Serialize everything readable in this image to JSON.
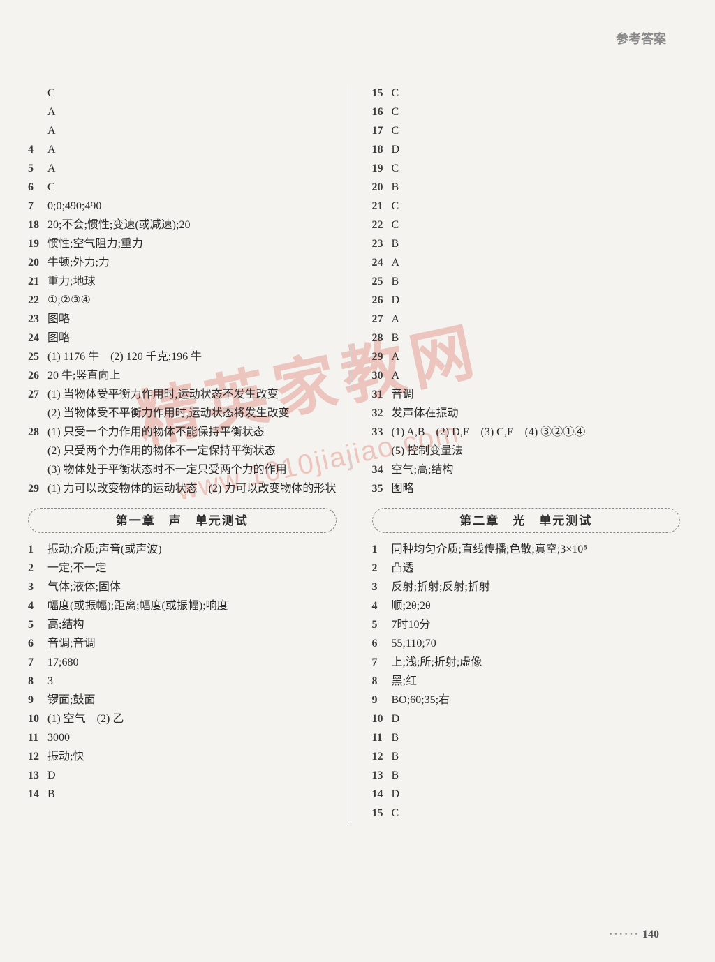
{
  "header": "参考答案",
  "pageNumber": "140",
  "watermark1": "精英家教网",
  "watermark2": "www.1010jiajiao.com",
  "left": {
    "items": [
      {
        "n": "",
        "t": "C"
      },
      {
        "n": "",
        "t": "A"
      },
      {
        "n": "",
        "t": "A"
      },
      {
        "n": "4",
        "t": "A"
      },
      {
        "n": "5",
        "t": "A"
      },
      {
        "n": "6",
        "t": "C"
      },
      {
        "n": "7",
        "t": "0;0;490;490"
      },
      {
        "n": "18",
        "t": "20;不会;惯性;变速(或减速);20"
      },
      {
        "n": "19",
        "t": "惯性;空气阻力;重力"
      },
      {
        "n": "20",
        "t": "牛顿;外力;力"
      },
      {
        "n": "21",
        "t": "重力;地球"
      },
      {
        "n": "22",
        "t": "①;②③④"
      },
      {
        "n": "23",
        "t": "图略"
      },
      {
        "n": "24",
        "t": "图略"
      },
      {
        "n": "25",
        "t": "(1) 1176 牛　(2) 120 千克;196 牛"
      },
      {
        "n": "26",
        "t": "20 牛;竖直向上"
      },
      {
        "n": "27",
        "t": "(1) 当物体受平衡力作用时,运动状态不发生改变"
      },
      {
        "n": "",
        "t": "(2) 当物体受不平衡力作用时,运动状态将发生改变",
        "indent": true
      },
      {
        "n": "28",
        "t": "(1) 只受一个力作用的物体不能保持平衡状态"
      },
      {
        "n": "",
        "t": "(2) 只受两个力作用的物体不一定保持平衡状态",
        "indent": true
      },
      {
        "n": "",
        "t": "(3) 物体处于平衡状态时不一定只受两个力的作用",
        "indent": true
      },
      {
        "n": "29",
        "t": "(1) 力可以改变物体的运动状态　(2) 力可以改变物体的形状"
      }
    ],
    "sectionTitle": "第一章　声　单元测试",
    "items2": [
      {
        "n": "1",
        "t": "振动;介质;声音(或声波)"
      },
      {
        "n": "2",
        "t": "一定;不一定"
      },
      {
        "n": "3",
        "t": "气体;液体;固体"
      },
      {
        "n": "4",
        "t": "幅度(或振幅);距离;幅度(或振幅);响度"
      },
      {
        "n": "5",
        "t": "高;结构"
      },
      {
        "n": "6",
        "t": "音调;音调"
      },
      {
        "n": "7",
        "t": "17;680"
      },
      {
        "n": "8",
        "t": "3"
      },
      {
        "n": "9",
        "t": "锣面;鼓面"
      },
      {
        "n": "10",
        "t": "(1) 空气　(2) 乙"
      },
      {
        "n": "11",
        "t": "3000"
      },
      {
        "n": "12",
        "t": "振动;快"
      },
      {
        "n": "13",
        "t": "D"
      },
      {
        "n": "14",
        "t": "B"
      }
    ]
  },
  "right": {
    "items": [
      {
        "n": "15",
        "t": "C"
      },
      {
        "n": "16",
        "t": "C"
      },
      {
        "n": "17",
        "t": "C"
      },
      {
        "n": "18",
        "t": "D"
      },
      {
        "n": "19",
        "t": "C"
      },
      {
        "n": "20",
        "t": "B"
      },
      {
        "n": "21",
        "t": "C"
      },
      {
        "n": "22",
        "t": "C"
      },
      {
        "n": "23",
        "t": "B"
      },
      {
        "n": "24",
        "t": "A"
      },
      {
        "n": "25",
        "t": "B"
      },
      {
        "n": "26",
        "t": "D"
      },
      {
        "n": "27",
        "t": "A"
      },
      {
        "n": "28",
        "t": "B"
      },
      {
        "n": "29",
        "t": "A"
      },
      {
        "n": "30",
        "t": "A"
      },
      {
        "n": "31",
        "t": "音调"
      },
      {
        "n": "32",
        "t": "发声体在振动"
      },
      {
        "n": "33",
        "t": "(1) A,B　(2) D,E　(3) C,E　(4) ③②①④"
      },
      {
        "n": "",
        "t": "(5) 控制变量法",
        "indent": true
      },
      {
        "n": "34",
        "t": "空气;高;结构"
      },
      {
        "n": "35",
        "t": "图略"
      }
    ],
    "sectionTitle": "第二章　光　单元测试",
    "items2": [
      {
        "n": "1",
        "t": "同种均匀介质;直线传播;色散;真空;3×10⁸"
      },
      {
        "n": "2",
        "t": "凸透"
      },
      {
        "n": "3",
        "t": "反射;折射;反射;折射"
      },
      {
        "n": "4",
        "t": "顺;2θ;2θ"
      },
      {
        "n": "5",
        "t": "7时10分"
      },
      {
        "n": "6",
        "t": "55;110;70"
      },
      {
        "n": "7",
        "t": "上;浅;所;折射;虚像"
      },
      {
        "n": "8",
        "t": "黑;红"
      },
      {
        "n": "9",
        "t": "BO;60;35;右"
      },
      {
        "n": "10",
        "t": "D"
      },
      {
        "n": "11",
        "t": "B"
      },
      {
        "n": "12",
        "t": "B"
      },
      {
        "n": "13",
        "t": "B"
      },
      {
        "n": "14",
        "t": "D"
      },
      {
        "n": "15",
        "t": "C"
      }
    ]
  }
}
